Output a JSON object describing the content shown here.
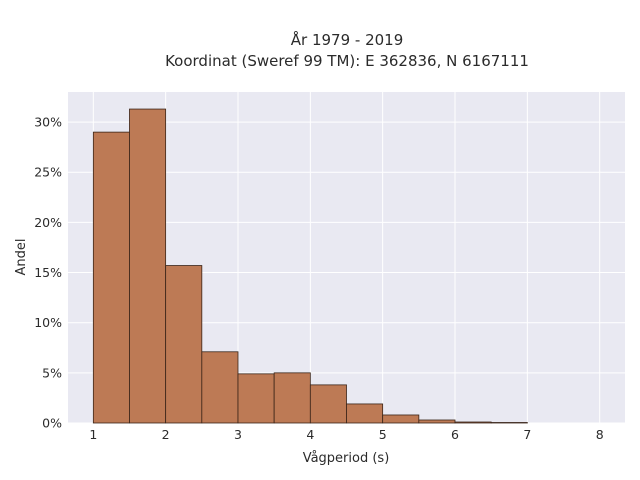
{
  "chart_data": {
    "type": "bar",
    "subtype": "histogram",
    "title": "År 1979 - 2019",
    "subtitle": "Koordinat (Sweref 99 TM): E 362836, N 6167111",
    "xlabel": "Vågperiod (s)",
    "ylabel": "Andel",
    "xlim": [
      0.65,
      8.35
    ],
    "ylim": [
      0,
      33
    ],
    "x_ticks": [
      1,
      2,
      3,
      4,
      5,
      6,
      7,
      8
    ],
    "y_ticks": [
      0,
      5,
      10,
      15,
      20,
      25,
      30
    ],
    "y_tick_labels": [
      "0%",
      "5%",
      "10%",
      "15%",
      "20%",
      "25%",
      "30%"
    ],
    "bin_edges": [
      1.0,
      1.5,
      2.0,
      2.5,
      3.0,
      3.5,
      4.0,
      4.5,
      5.0,
      5.5,
      6.0,
      6.5,
      7.0
    ],
    "values": [
      29.0,
      31.3,
      15.7,
      7.1,
      4.9,
      5.0,
      3.8,
      1.9,
      0.8,
      0.3,
      0.1,
      0.05
    ],
    "value_unit": "%",
    "grid": true,
    "legend": "none",
    "colors": {
      "bar_fill": "#bd7a55",
      "bar_edge": "#3a2418",
      "plot_background": "#e9e9f2",
      "grid": "#ffffff"
    }
  }
}
